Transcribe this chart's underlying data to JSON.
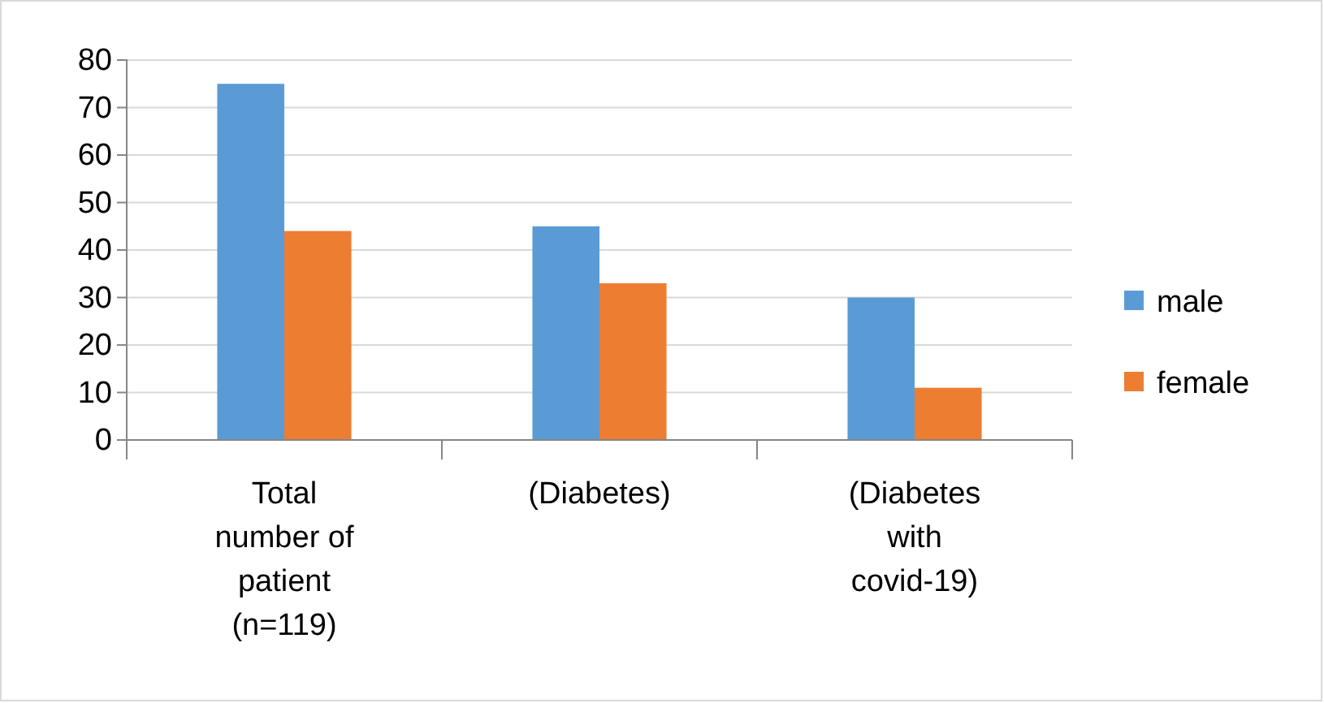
{
  "chart_data": {
    "type": "bar",
    "categories": [
      "Total number of patient (n=119)",
      "(Diabetes)",
      "(Diabetes with covid-19)"
    ],
    "series": [
      {
        "name": "male",
        "color": "#5b9bd5",
        "values": [
          75,
          45,
          30
        ]
      },
      {
        "name": "female",
        "color": "#ed7d31",
        "values": [
          44,
          33,
          11
        ]
      }
    ],
    "ylim": [
      0,
      80
    ],
    "yticks": [
      0,
      10,
      20,
      30,
      40,
      50,
      60,
      70,
      80
    ],
    "grid": "y",
    "legend": "right"
  }
}
